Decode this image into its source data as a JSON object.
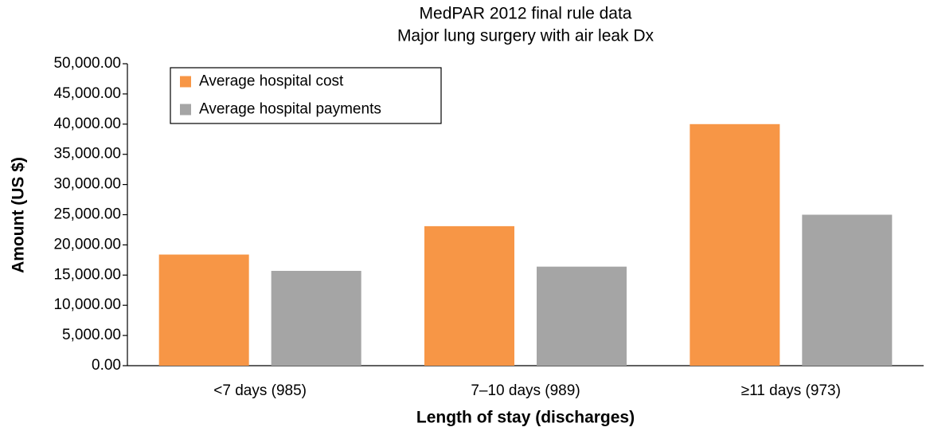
{
  "chart_data": {
    "type": "bar",
    "title": "MedPAR 2012 final rule data",
    "subtitle": "Major lung surgery with air leak Dx",
    "x_label": "Length of stay (discharges)",
    "y_label": "Amount (US $)",
    "categories": [
      "<7 days (985)",
      "7–10 days (989)",
      "≥11 days (973)"
    ],
    "series": [
      {
        "name": "Average hospital cost",
        "color": "#f79646",
        "values": [
          18400,
          23100,
          40000
        ]
      },
      {
        "name": "Average hospital payments",
        "color": "#a5a5a5",
        "values": [
          15700,
          16400,
          25000
        ]
      }
    ],
    "ylim": [
      0,
      50000
    ],
    "yticks": [
      {
        "value": 0,
        "label": "0.00"
      },
      {
        "value": 5000,
        "label": "5,000.00"
      },
      {
        "value": 10000,
        "label": "10,000.00"
      },
      {
        "value": 15000,
        "label": "15,000.00"
      },
      {
        "value": 20000,
        "label": "20,000.00"
      },
      {
        "value": 25000,
        "label": "25,000.00"
      },
      {
        "value": 30000,
        "label": "30,000.00"
      },
      {
        "value": 35000,
        "label": "35,000.00"
      },
      {
        "value": 40000,
        "label": "40,000.00"
      },
      {
        "value": 45000,
        "label": "45,000.00"
      },
      {
        "value": 50000,
        "label": "50,000.00"
      }
    ],
    "grid": false,
    "legend_position": "top-left"
  }
}
